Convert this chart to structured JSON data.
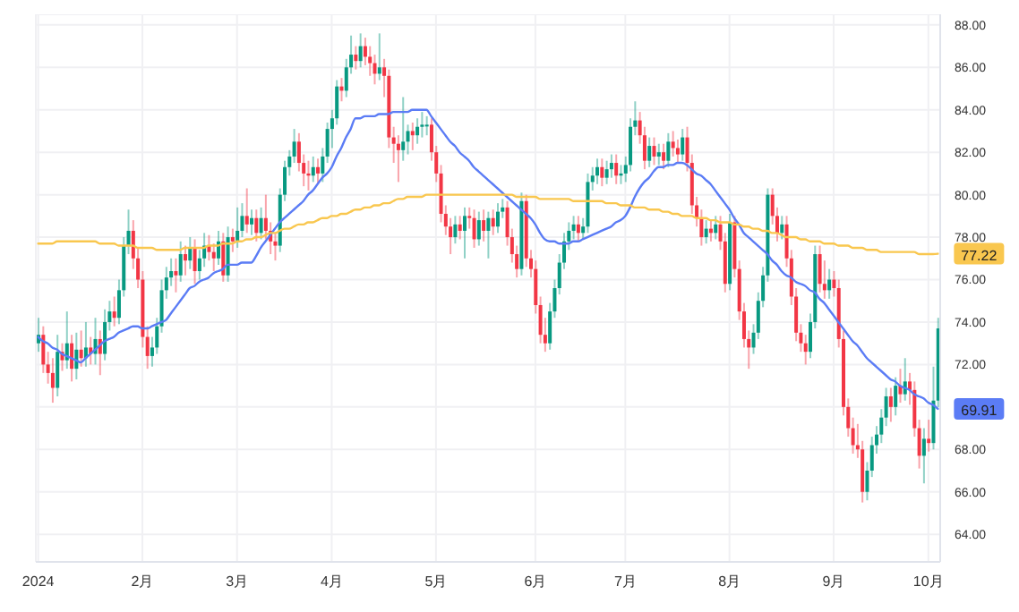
{
  "chart_data": {
    "type": "candlestick",
    "categories": [
      "2024",
      null,
      null,
      null,
      null,
      null,
      null,
      null,
      null,
      null,
      null,
      null,
      null,
      null,
      null,
      null,
      null,
      null,
      null,
      null,
      null,
      null,
      "2月",
      null,
      null,
      null,
      null,
      null,
      null,
      null,
      null,
      null,
      null,
      null,
      null,
      null,
      null,
      null,
      null,
      null,
      null,
      null,
      "3月",
      null,
      null,
      null,
      null,
      null,
      null,
      null,
      null,
      null,
      null,
      null,
      null,
      null,
      null,
      null,
      null,
      null,
      null,
      null,
      "4月",
      null,
      null,
      null,
      null,
      null,
      null,
      null,
      null,
      null,
      null,
      null,
      null,
      null,
      null,
      null,
      null,
      null,
      null,
      null,
      null,
      null,
      "5月",
      null,
      null,
      null,
      null,
      null,
      null,
      null,
      null,
      null,
      null,
      null,
      null,
      null,
      null,
      null,
      null,
      null,
      null,
      null,
      null,
      "6月",
      null,
      null,
      null,
      null,
      null,
      null,
      null,
      null,
      null,
      null,
      null,
      null,
      null,
      null,
      null,
      null,
      null,
      null,
      "7月",
      null,
      null,
      null,
      null,
      null,
      null,
      null,
      null,
      null,
      null,
      null,
      null,
      null,
      null,
      null,
      null,
      null,
      null,
      null,
      null,
      null,
      "8月",
      null,
      null,
      null,
      null,
      null,
      null,
      null,
      null,
      null,
      null,
      null,
      null,
      null,
      null,
      null,
      null,
      null,
      null,
      null,
      null,
      null,
      "9月",
      null,
      null,
      null,
      null,
      null,
      null,
      null,
      null,
      null,
      null,
      null,
      null,
      null,
      null,
      null,
      null,
      null,
      null,
      null,
      "10月",
      null,
      null
    ],
    "ohlc": [
      [
        73.0,
        74.2,
        72.6,
        73.4
      ],
      [
        73.4,
        73.8,
        71.6,
        72.0
      ],
      [
        72.0,
        72.6,
        71.1,
        71.6
      ],
      [
        71.6,
        72.3,
        70.2,
        70.9
      ],
      [
        70.9,
        73.4,
        70.5,
        72.6
      ],
      [
        72.6,
        73.0,
        71.7,
        72.2
      ],
      [
        72.2,
        74.5,
        71.8,
        73.0
      ],
      [
        73.0,
        73.4,
        71.2,
        71.8
      ],
      [
        71.8,
        73.5,
        71.3,
        72.7
      ],
      [
        72.7,
        73.6,
        71.9,
        72.3
      ],
      [
        72.3,
        74.0,
        71.9,
        72.8
      ],
      [
        72.8,
        73.3,
        72.0,
        72.5
      ],
      [
        72.5,
        74.2,
        72.0,
        73.2
      ],
      [
        73.2,
        73.6,
        71.5,
        72.5
      ],
      [
        72.5,
        74.6,
        72.2,
        74.0
      ],
      [
        74.0,
        75.0,
        73.6,
        74.5
      ],
      [
        74.5,
        75.2,
        73.8,
        74.2
      ],
      [
        74.2,
        76.0,
        73.9,
        75.5
      ],
      [
        75.5,
        78.0,
        75.2,
        77.6
      ],
      [
        77.6,
        79.3,
        77.2,
        78.3
      ],
      [
        78.3,
        78.8,
        76.5,
        77.0
      ],
      [
        77.0,
        77.5,
        75.6,
        76.0
      ],
      [
        76.0,
        76.4,
        72.8,
        73.3
      ],
      [
        73.3,
        73.8,
        71.8,
        72.4
      ],
      [
        72.4,
        73.3,
        71.9,
        72.8
      ],
      [
        72.8,
        74.2,
        72.5,
        73.8
      ],
      [
        73.8,
        76.0,
        73.5,
        75.5
      ],
      [
        75.5,
        76.6,
        75.1,
        76.1
      ],
      [
        76.1,
        77.0,
        75.7,
        76.4
      ],
      [
        76.4,
        77.0,
        75.4,
        76.2
      ],
      [
        76.2,
        77.8,
        75.9,
        77.2
      ],
      [
        77.2,
        77.6,
        76.2,
        76.9
      ],
      [
        76.9,
        78.0,
        76.5,
        77.5
      ],
      [
        77.5,
        77.9,
        75.8,
        76.4
      ],
      [
        76.4,
        77.4,
        76.0,
        77.0
      ],
      [
        77.0,
        78.2,
        76.6,
        77.6
      ],
      [
        77.6,
        78.1,
        76.9,
        77.3
      ],
      [
        77.3,
        77.7,
        76.4,
        77.0
      ],
      [
        77.0,
        78.3,
        76.7,
        77.8
      ],
      [
        77.8,
        78.2,
        75.9,
        76.2
      ],
      [
        76.2,
        78.5,
        75.9,
        78.0
      ],
      [
        78.0,
        78.4,
        77.3,
        77.8
      ],
      [
        77.8,
        79.4,
        77.5,
        78.3
      ],
      [
        78.3,
        79.6,
        78.0,
        79.0
      ],
      [
        79.0,
        80.3,
        78.2,
        78.6
      ],
      [
        78.6,
        79.3,
        78.1,
        78.9
      ],
      [
        78.9,
        79.3,
        77.8,
        78.2
      ],
      [
        78.2,
        79.4,
        77.9,
        78.9
      ],
      [
        78.9,
        80.0,
        77.9,
        78.3
      ],
      [
        78.3,
        78.7,
        77.2,
        77.8
      ],
      [
        77.8,
        78.2,
        76.9,
        77.6
      ],
      [
        77.6,
        80.3,
        77.3,
        80.0
      ],
      [
        80.0,
        81.6,
        79.7,
        81.3
      ],
      [
        81.3,
        82.1,
        80.9,
        81.8
      ],
      [
        81.8,
        83.1,
        81.5,
        82.5
      ],
      [
        82.5,
        82.9,
        81.1,
        81.5
      ],
      [
        81.5,
        81.9,
        80.4,
        81.0
      ],
      [
        81.0,
        81.6,
        80.2,
        80.9
      ],
      [
        80.9,
        81.8,
        80.6,
        81.3
      ],
      [
        81.3,
        81.7,
        80.5,
        81.0
      ],
      [
        81.0,
        82.2,
        80.6,
        81.8
      ],
      [
        81.8,
        83.4,
        81.5,
        83.1
      ],
      [
        83.1,
        84.0,
        82.2,
        83.6
      ],
      [
        83.6,
        85.4,
        83.3,
        85.1
      ],
      [
        85.1,
        85.5,
        84.4,
        84.9
      ],
      [
        84.9,
        86.4,
        84.6,
        86.0
      ],
      [
        86.0,
        87.5,
        85.7,
        86.6
      ],
      [
        86.6,
        87.0,
        85.9,
        86.3
      ],
      [
        86.3,
        87.6,
        86.0,
        87.0
      ],
      [
        87.0,
        87.4,
        86.1,
        86.5
      ],
      [
        86.5,
        87.0,
        85.6,
        86.2
      ],
      [
        86.2,
        86.6,
        85.2,
        85.7
      ],
      [
        85.7,
        87.6,
        85.4,
        86.0
      ],
      [
        86.0,
        86.4,
        84.6,
        85.6
      ],
      [
        85.6,
        85.9,
        82.2,
        82.7
      ],
      [
        82.7,
        83.2,
        81.5,
        82.4
      ],
      [
        82.4,
        82.8,
        80.6,
        82.1
      ],
      [
        82.1,
        84.6,
        81.6,
        82.5
      ],
      [
        82.5,
        83.3,
        81.9,
        83.0
      ],
      [
        83.0,
        83.4,
        82.1,
        82.8
      ],
      [
        82.8,
        83.6,
        82.4,
        83.2
      ],
      [
        83.2,
        83.9,
        82.7,
        83.3
      ],
      [
        83.3,
        83.7,
        82.8,
        83.3
      ],
      [
        83.3,
        83.6,
        81.6,
        82.0
      ],
      [
        82.0,
        82.3,
        80.6,
        81.0
      ],
      [
        81.0,
        81.4,
        78.7,
        79.1
      ],
      [
        79.1,
        79.5,
        78.1,
        78.5
      ],
      [
        78.5,
        78.9,
        77.2,
        78.0
      ],
      [
        78.0,
        79.0,
        77.7,
        78.6
      ],
      [
        78.6,
        79.0,
        77.9,
        78.3
      ],
      [
        78.3,
        79.4,
        77.0,
        79.0
      ],
      [
        79.0,
        79.4,
        78.4,
        78.9
      ],
      [
        78.9,
        79.3,
        77.5,
        77.9
      ],
      [
        77.9,
        79.2,
        77.6,
        78.8
      ],
      [
        78.8,
        79.3,
        77.8,
        78.3
      ],
      [
        78.3,
        79.2,
        77.0,
        78.9
      ],
      [
        78.9,
        79.3,
        78.1,
        78.5
      ],
      [
        78.5,
        79.6,
        78.2,
        79.2
      ],
      [
        79.2,
        79.8,
        78.9,
        79.4
      ],
      [
        79.4,
        79.7,
        77.6,
        78.0
      ],
      [
        78.0,
        78.4,
        76.8,
        77.2
      ],
      [
        77.2,
        77.6,
        76.1,
        76.5
      ],
      [
        76.5,
        80.1,
        76.2,
        79.7
      ],
      [
        79.7,
        80.0,
        76.6,
        77.0
      ],
      [
        77.0,
        77.4,
        76.1,
        76.5
      ],
      [
        76.5,
        76.9,
        74.4,
        74.8
      ],
      [
        74.8,
        75.2,
        73.0,
        73.4
      ],
      [
        73.4,
        74.2,
        72.6,
        73.0
      ],
      [
        73.0,
        74.9,
        72.7,
        74.5
      ],
      [
        74.5,
        76.0,
        74.2,
        75.6
      ],
      [
        75.6,
        77.2,
        75.3,
        76.8
      ],
      [
        76.8,
        78.2,
        76.5,
        77.8
      ],
      [
        77.8,
        78.7,
        77.4,
        78.3
      ],
      [
        78.3,
        79.0,
        77.9,
        78.6
      ],
      [
        78.6,
        79.0,
        77.8,
        78.2
      ],
      [
        78.2,
        78.9,
        77.9,
        78.5
      ],
      [
        78.5,
        81.0,
        78.2,
        80.6
      ],
      [
        80.6,
        81.3,
        80.2,
        80.9
      ],
      [
        80.9,
        81.7,
        80.5,
        81.3
      ],
      [
        81.3,
        81.7,
        80.4,
        80.8
      ],
      [
        80.8,
        81.6,
        80.5,
        81.2
      ],
      [
        81.2,
        81.9,
        80.8,
        81.5
      ],
      [
        81.5,
        81.9,
        80.5,
        80.9
      ],
      [
        80.9,
        81.4,
        80.5,
        81.0
      ],
      [
        81.0,
        81.8,
        80.6,
        81.4
      ],
      [
        81.4,
        83.6,
        81.1,
        83.2
      ],
      [
        83.2,
        84.4,
        82.8,
        83.5
      ],
      [
        83.5,
        83.9,
        82.4,
        82.8
      ],
      [
        82.8,
        83.2,
        81.2,
        81.6
      ],
      [
        81.6,
        82.7,
        81.3,
        82.3
      ],
      [
        82.3,
        82.7,
        81.4,
        81.8
      ],
      [
        81.8,
        82.4,
        81.4,
        82.0
      ],
      [
        82.0,
        82.4,
        81.2,
        81.6
      ],
      [
        81.6,
        82.9,
        81.3,
        82.5
      ],
      [
        82.5,
        83.0,
        81.8,
        82.2
      ],
      [
        82.2,
        82.6,
        81.5,
        81.9
      ],
      [
        81.9,
        83.1,
        81.6,
        82.7
      ],
      [
        82.7,
        83.2,
        81.1,
        81.5
      ],
      [
        81.5,
        81.9,
        79.1,
        79.5
      ],
      [
        79.5,
        79.9,
        78.5,
        78.9
      ],
      [
        78.9,
        79.3,
        77.6,
        78.0
      ],
      [
        78.0,
        78.8,
        77.7,
        78.4
      ],
      [
        78.4,
        78.8,
        77.8,
        78.2
      ],
      [
        78.2,
        79.0,
        77.9,
        78.6
      ],
      [
        78.6,
        79.0,
        77.4,
        77.8
      ],
      [
        77.8,
        78.2,
        75.4,
        75.8
      ],
      [
        75.8,
        79.1,
        75.5,
        78.7
      ],
      [
        78.7,
        79.0,
        76.1,
        76.5
      ],
      [
        76.5,
        76.9,
        74.1,
        74.5
      ],
      [
        74.5,
        74.9,
        72.8,
        73.2
      ],
      [
        73.2,
        73.6,
        71.8,
        72.8
      ],
      [
        72.8,
        73.9,
        72.5,
        73.5
      ],
      [
        73.5,
        75.4,
        73.2,
        75.0
      ],
      [
        75.0,
        76.6,
        74.7,
        76.2
      ],
      [
        76.2,
        80.3,
        75.9,
        80.0
      ],
      [
        80.0,
        80.3,
        78.6,
        79.0
      ],
      [
        79.0,
        79.4,
        77.8,
        78.2
      ],
      [
        78.2,
        79.0,
        77.9,
        78.6
      ],
      [
        78.6,
        79.0,
        76.6,
        77.0
      ],
      [
        77.0,
        77.4,
        74.8,
        75.2
      ],
      [
        75.2,
        75.6,
        73.1,
        73.5
      ],
      [
        73.5,
        73.9,
        72.6,
        73.0
      ],
      [
        73.0,
        73.4,
        72.0,
        72.6
      ],
      [
        72.6,
        74.4,
        72.3,
        74.0
      ],
      [
        74.0,
        77.6,
        73.7,
        77.2
      ],
      [
        77.2,
        77.6,
        75.4,
        75.8
      ],
      [
        75.8,
        76.9,
        75.1,
        75.5
      ],
      [
        75.5,
        76.5,
        75.1,
        76.0
      ],
      [
        76.0,
        76.4,
        75.2,
        75.6
      ],
      [
        75.6,
        76.0,
        72.8,
        73.2
      ],
      [
        73.2,
        73.6,
        69.6,
        70.0
      ],
      [
        70.0,
        70.4,
        68.6,
        69.0
      ],
      [
        69.0,
        69.5,
        67.8,
        68.2
      ],
      [
        68.2,
        69.2,
        67.6,
        68.0
      ],
      [
        68.0,
        68.4,
        65.5,
        66.0
      ],
      [
        66.0,
        67.4,
        65.6,
        67.0
      ],
      [
        67.0,
        68.6,
        66.7,
        68.2
      ],
      [
        68.2,
        69.1,
        67.8,
        68.7
      ],
      [
        68.7,
        69.9,
        68.3,
        69.5
      ],
      [
        69.5,
        70.9,
        69.1,
        70.5
      ],
      [
        70.5,
        70.9,
        69.3,
        70.0
      ],
      [
        70.0,
        71.4,
        69.6,
        71.0
      ],
      [
        71.0,
        71.8,
        70.2,
        70.6
      ],
      [
        70.6,
        72.3,
        70.3,
        71.2
      ],
      [
        71.2,
        71.6,
        70.1,
        70.8
      ],
      [
        70.8,
        71.2,
        68.6,
        69.0
      ],
      [
        69.0,
        69.4,
        67.1,
        67.7
      ],
      [
        67.7,
        69.0,
        66.4,
        68.5
      ],
      [
        68.5,
        69.4,
        67.9,
        68.3
      ],
      [
        68.3,
        71.9,
        68.0,
        70.3
      ],
      [
        70.3,
        74.2,
        70.0,
        73.7
      ]
    ],
    "colors": [
      "#089981",
      "#f23645",
      "#f23645",
      "#f23645",
      "#089981",
      "#f23645",
      "#089981",
      "#f23645",
      "#089981",
      "#f23645",
      "#089981",
      "#f23645",
      "#089981",
      "#f23645",
      "#089981",
      "#089981",
      "#f23645",
      "#089981",
      "#089981",
      "#089981",
      "#f23645",
      "#f23645",
      "#f23645",
      "#f23645",
      "#089981",
      "#089981",
      "#089981",
      "#089981",
      "#089981",
      "#f23645",
      "#089981",
      "#f23645",
      "#089981",
      "#f23645",
      "#089981",
      "#089981",
      "#f23645",
      "#f23645",
      "#089981",
      "#f23645",
      "#089981",
      "#f23645",
      "#089981",
      "#089981",
      "#f23645",
      "#089981",
      "#f23645",
      "#089981",
      "#f23645",
      "#f23645",
      "#f23645",
      "#089981",
      "#089981",
      "#089981",
      "#089981",
      "#f23645",
      "#f23645",
      "#f23645",
      "#089981",
      "#f23645",
      "#089981",
      "#089981",
      "#089981",
      "#089981",
      "#f23645",
      "#089981",
      "#089981",
      "#f23645",
      "#089981",
      "#f23645",
      "#f23645",
      "#f23645",
      "#089981",
      "#f23645",
      "#f23645",
      "#f23645",
      "#f23645",
      "#089981",
      "#089981",
      "#f23645",
      "#089981",
      "#089981",
      "#089981",
      "#f23645",
      "#f23645",
      "#f23645",
      "#f23645",
      "#f23645",
      "#089981",
      "#f23645",
      "#089981",
      "#f23645",
      "#f23645",
      "#089981",
      "#f23645",
      "#089981",
      "#f23645",
      "#089981",
      "#089981",
      "#f23645",
      "#f23645",
      "#f23645",
      "#089981",
      "#f23645",
      "#f23645",
      "#f23645",
      "#f23645",
      "#f23645",
      "#089981",
      "#089981",
      "#089981",
      "#089981",
      "#089981",
      "#089981",
      "#f23645",
      "#089981",
      "#089981",
      "#089981",
      "#089981",
      "#f23645",
      "#089981",
      "#089981",
      "#f23645",
      "#089981",
      "#089981",
      "#089981",
      "#089981",
      "#f23645",
      "#f23645",
      "#089981",
      "#f23645",
      "#089981",
      "#f23645",
      "#089981",
      "#f23645",
      "#f23645",
      "#089981",
      "#f23645",
      "#f23645",
      "#f23645",
      "#f23645",
      "#089981",
      "#f23645",
      "#089981",
      "#f23645",
      "#f23645",
      "#089981",
      "#f23645",
      "#f23645",
      "#f23645",
      "#f23645",
      "#089981",
      "#089981",
      "#089981",
      "#089981",
      "#f23645",
      "#f23645",
      "#089981",
      "#f23645",
      "#f23645",
      "#f23645",
      "#f23645",
      "#f23645",
      "#089981",
      "#089981",
      "#f23645",
      "#f23645",
      "#089981",
      "#f23645",
      "#f23645",
      "#f23645",
      "#f23645",
      "#f23645",
      "#f23645",
      "#f23645",
      "#089981",
      "#089981",
      "#089981",
      "#089981",
      "#089981",
      "#f23645",
      "#089981",
      "#f23645",
      "#089981",
      "#f23645",
      "#f23645",
      "#f23645",
      "#089981",
      "#f23645",
      "#089981",
      "#089981"
    ],
    "series": [
      {
        "type": "line",
        "color": "#5b7cf5",
        "values": [
          73.3,
          73.1,
          73.0,
          72.8,
          72.7,
          72.5,
          72.4,
          72.3,
          72.2,
          72.1,
          72.3,
          72.5,
          72.7,
          72.9,
          73.1,
          73.2,
          73.3,
          73.5,
          73.6,
          73.7,
          73.8,
          73.8,
          73.7,
          73.7,
          73.8,
          73.9,
          74.0,
          74.1,
          74.4,
          74.7,
          75.0,
          75.3,
          75.6,
          75.7,
          75.9,
          76.0,
          76.1,
          76.3,
          76.4,
          76.5,
          76.7,
          76.7,
          76.7,
          76.8,
          76.8,
          76.8,
          77.1,
          77.5,
          77.8,
          78.1,
          78.4,
          78.7,
          78.9,
          79.1,
          79.3,
          79.5,
          79.7,
          80.0,
          80.2,
          80.5,
          80.8,
          81.0,
          81.3,
          81.8,
          82.2,
          82.7,
          83.1,
          83.6,
          83.6,
          83.7,
          83.7,
          83.7,
          83.8,
          83.8,
          83.8,
          83.9,
          83.9,
          83.9,
          83.9,
          84.0,
          84.0,
          84.0,
          84.0,
          83.7,
          83.4,
          83.1,
          82.8,
          82.5,
          82.3,
          82.0,
          81.8,
          81.6,
          81.3,
          81.1,
          80.9,
          80.7,
          80.5,
          80.3,
          80.1,
          79.9,
          79.7,
          79.5,
          79.3,
          79.1,
          78.9,
          78.6,
          78.2,
          77.9,
          77.8,
          77.8,
          77.7,
          77.7,
          77.7,
          77.8,
          77.8,
          77.9,
          78.0,
          78.1,
          78.2,
          78.3,
          78.4,
          78.5,
          78.7,
          78.8,
          79.0,
          79.4,
          79.9,
          80.3,
          80.6,
          80.8,
          81.1,
          81.3,
          81.3,
          81.4,
          81.4,
          81.5,
          81.5,
          81.4,
          81.2,
          81.0,
          80.9,
          80.7,
          80.5,
          80.2,
          79.9,
          79.6,
          79.3,
          78.9,
          78.6,
          78.2,
          78.0,
          77.8,
          77.6,
          77.4,
          77.2,
          76.9,
          76.7,
          76.4,
          76.2,
          76.1,
          75.9,
          75.8,
          75.7,
          75.5,
          75.4,
          75.1,
          74.9,
          74.6,
          74.3,
          74.0,
          73.7,
          73.4,
          73.1,
          72.9,
          72.6,
          72.3,
          72.1,
          71.9,
          71.7,
          71.5,
          71.3,
          71.2,
          71.0,
          70.9,
          70.8,
          70.6,
          70.5,
          70.4,
          70.2,
          70.1,
          69.91
        ],
        "value_labels": [
          null,
          null,
          null,
          null,
          null,
          null,
          null,
          null,
          null,
          null,
          null,
          null,
          null,
          null,
          null,
          null,
          null,
          null,
          null,
          null,
          null,
          null,
          null,
          null,
          null,
          null,
          null,
          null,
          null,
          null,
          null,
          null,
          null,
          null,
          null,
          null,
          null,
          null,
          null,
          null,
          null,
          null,
          null,
          null,
          null,
          null,
          null,
          null,
          null,
          null,
          null,
          null,
          null,
          null,
          null,
          null,
          null,
          null,
          null,
          null,
          null,
          null,
          null,
          null,
          null,
          null,
          null,
          null,
          null,
          null,
          null,
          null,
          null,
          null,
          null,
          null,
          null,
          null,
          null,
          null,
          null,
          null,
          null,
          null,
          null,
          null,
          null,
          null,
          null,
          null,
          null,
          null,
          null,
          null,
          null,
          null,
          null,
          null,
          null,
          null,
          null,
          null,
          null,
          null,
          null,
          null,
          null,
          null,
          null,
          null,
          null,
          null,
          null,
          null,
          null,
          null,
          null,
          null,
          null,
          null,
          null,
          null,
          null,
          null,
          null,
          null,
          null,
          null,
          null,
          null,
          null,
          null,
          null,
          null,
          null,
          null,
          null,
          null,
          null,
          null,
          null,
          null,
          null,
          null,
          null,
          null,
          null,
          null,
          null,
          null,
          null,
          null,
          null,
          null,
          null,
          null,
          null,
          null,
          null,
          null,
          null,
          null,
          null,
          null,
          null,
          null,
          null,
          null,
          null,
          null,
          null,
          null,
          null,
          null,
          null,
          null,
          null,
          null,
          null,
          null,
          null,
          null,
          null,
          null,
          null,
          null,
          null,
          null,
          null,
          null,
          "69.91"
        ]
      },
      {
        "type": "line",
        "color": "#f9c74f",
        "values": [
          77.7,
          77.7,
          77.7,
          77.7,
          77.8,
          77.8,
          77.8,
          77.8,
          77.8,
          77.8,
          77.8,
          77.8,
          77.8,
          77.7,
          77.7,
          77.7,
          77.7,
          77.6,
          77.6,
          77.6,
          77.6,
          77.5,
          77.5,
          77.5,
          77.5,
          77.4,
          77.4,
          77.4,
          77.4,
          77.4,
          77.4,
          77.5,
          77.5,
          77.5,
          77.5,
          77.5,
          77.6,
          77.6,
          77.6,
          77.7,
          77.7,
          77.7,
          77.8,
          77.8,
          77.9,
          77.9,
          78.0,
          78.0,
          78.1,
          78.2,
          78.2,
          78.3,
          78.4,
          78.4,
          78.5,
          78.6,
          78.6,
          78.7,
          78.7,
          78.8,
          78.9,
          78.9,
          79.0,
          79.0,
          79.1,
          79.1,
          79.2,
          79.3,
          79.3,
          79.4,
          79.4,
          79.5,
          79.5,
          79.6,
          79.6,
          79.7,
          79.8,
          79.8,
          79.9,
          79.9,
          79.9,
          79.9,
          80.0,
          80.0,
          80.0,
          80.0,
          80.0,
          80.0,
          80.0,
          80.0,
          80.0,
          80.0,
          80.0,
          80.0,
          80.0,
          80.0,
          80.0,
          80.0,
          80.0,
          80.0,
          80.0,
          79.9,
          79.9,
          79.9,
          79.9,
          79.9,
          79.8,
          79.8,
          79.8,
          79.8,
          79.8,
          79.8,
          79.8,
          79.7,
          79.7,
          79.7,
          79.7,
          79.7,
          79.7,
          79.7,
          79.6,
          79.6,
          79.6,
          79.5,
          79.5,
          79.5,
          79.4,
          79.4,
          79.4,
          79.3,
          79.3,
          79.3,
          79.2,
          79.2,
          79.1,
          79.1,
          79.0,
          79.0,
          79.0,
          78.9,
          78.9,
          78.9,
          78.8,
          78.8,
          78.7,
          78.7,
          78.7,
          78.6,
          78.6,
          78.5,
          78.5,
          78.4,
          78.4,
          78.3,
          78.3,
          78.2,
          78.2,
          78.1,
          78.0,
          78.0,
          78.0,
          77.9,
          77.9,
          77.8,
          77.8,
          77.8,
          77.7,
          77.7,
          77.7,
          77.6,
          77.6,
          77.6,
          77.5,
          77.5,
          77.5,
          77.4,
          77.4,
          77.4,
          77.3,
          77.3,
          77.3,
          77.3,
          77.3,
          77.3,
          77.3,
          77.3,
          77.2,
          77.2,
          77.2,
          77.2,
          77.22
        ],
        "value_labels": [
          null,
          null,
          null,
          null,
          null,
          null,
          null,
          null,
          null,
          null,
          null,
          null,
          null,
          null,
          null,
          null,
          null,
          null,
          null,
          null,
          null,
          null,
          null,
          null,
          null,
          null,
          null,
          null,
          null,
          null,
          null,
          null,
          null,
          null,
          null,
          null,
          null,
          null,
          null,
          null,
          null,
          null,
          null,
          null,
          null,
          null,
          null,
          null,
          null,
          null,
          null,
          null,
          null,
          null,
          null,
          null,
          null,
          null,
          null,
          null,
          null,
          null,
          null,
          null,
          null,
          null,
          null,
          null,
          null,
          null,
          null,
          null,
          null,
          null,
          null,
          null,
          null,
          null,
          null,
          null,
          null,
          null,
          null,
          null,
          null,
          null,
          null,
          null,
          null,
          null,
          null,
          null,
          null,
          null,
          null,
          null,
          null,
          null,
          null,
          null,
          null,
          null,
          null,
          null,
          null,
          null,
          null,
          null,
          null,
          null,
          null,
          null,
          null,
          null,
          null,
          null,
          null,
          null,
          null,
          null,
          null,
          null,
          null,
          null,
          null,
          null,
          null,
          null,
          null,
          null,
          null,
          null,
          null,
          null,
          null,
          null,
          null,
          null,
          null,
          null,
          null,
          null,
          null,
          null,
          null,
          null,
          null,
          null,
          null,
          null,
          null,
          null,
          null,
          null,
          null,
          null,
          null,
          null,
          null,
          null,
          null,
          null,
          null,
          null,
          null,
          null,
          null,
          null,
          null,
          null,
          null,
          null,
          null,
          null,
          null,
          null,
          null,
          null,
          null,
          null,
          null,
          null,
          null,
          null,
          null,
          null,
          null,
          null,
          null,
          null,
          "77.22"
        ]
      }
    ],
    "ylim": [
      62.7,
      88.5
    ],
    "yticks": [
      {
        "value": 64,
        "label": "64.00"
      },
      {
        "value": 66,
        "label": "66.00"
      },
      {
        "value": 68,
        "label": "68.00"
      },
      {
        "value": 70,
        "label": null
      },
      {
        "value": 72,
        "label": "72.00"
      },
      {
        "value": 74,
        "label": "74.00"
      },
      {
        "value": 76,
        "label": "76.00"
      },
      {
        "value": 78,
        "label": "78.00"
      },
      {
        "value": 80,
        "label": "80.00"
      },
      {
        "value": 82,
        "label": "82.00"
      },
      {
        "value": 84,
        "label": "84.00"
      },
      {
        "value": 86,
        "label": "86.00"
      },
      {
        "value": 88,
        "label": "88.00"
      }
    ],
    "grid": true
  }
}
